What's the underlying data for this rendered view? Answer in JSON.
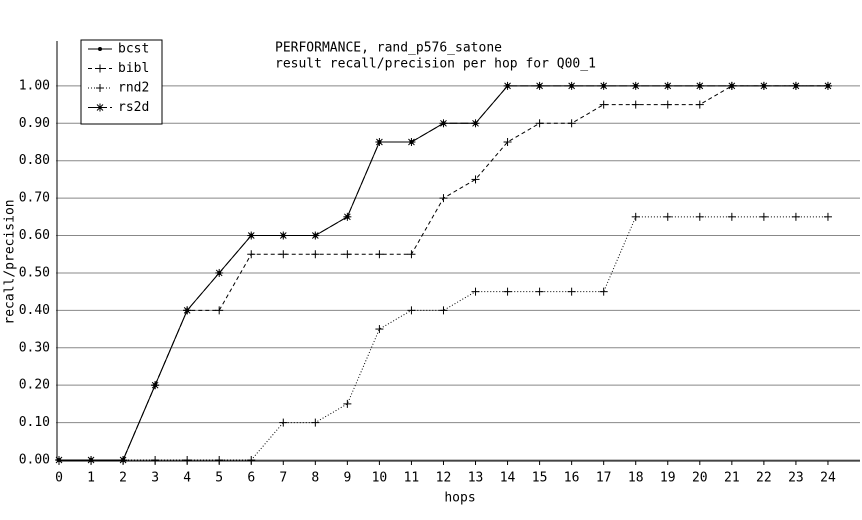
{
  "chart_data": {
    "type": "line",
    "title": "PERFORMANCE, rand_p576_satone",
    "subtitle": "result recall/precision per hop for Q00_1",
    "x_label": "hops",
    "y_label": "recall/precision",
    "x": [
      0,
      1,
      2,
      3,
      4,
      5,
      6,
      7,
      8,
      9,
      10,
      11,
      12,
      13,
      14,
      15,
      16,
      17,
      18,
      19,
      20,
      21,
      22,
      23,
      24
    ],
    "series": [
      {
        "name": "bcst",
        "color": "#000000",
        "dash": "none",
        "marker": "dot",
        "values": [
          0,
          0,
          0,
          0.2,
          0.4,
          0.5,
          0.6,
          0.6,
          0.6,
          0.65,
          0.85,
          0.85,
          0.9,
          0.9,
          1,
          1,
          1,
          1,
          1,
          1,
          1,
          1,
          1,
          1,
          1
        ]
      },
      {
        "name": "bibl",
        "color": "#000000",
        "dash": "4 3",
        "marker": "plus",
        "values": [
          0,
          0,
          0,
          0.2,
          0.4,
          0.4,
          0.55,
          0.55,
          0.55,
          0.55,
          0.55,
          0.55,
          0.7,
          0.75,
          0.85,
          0.9,
          0.9,
          0.95,
          0.95,
          0.95,
          0.95,
          1,
          1,
          1,
          1
        ]
      },
      {
        "name": "rnd2",
        "color": "#000000",
        "dash": "1 2",
        "marker": "plus",
        "values": [
          0,
          0,
          0,
          0,
          0,
          0,
          0,
          0.1,
          0.1,
          0.15,
          0.35,
          0.4,
          0.4,
          0.45,
          0.45,
          0.45,
          0.45,
          0.45,
          0.65,
          0.65,
          0.65,
          0.65,
          0.65,
          0.65,
          0.65
        ]
      },
      {
        "name": "rs2d",
        "color": "#000000",
        "dash": "8 3",
        "marker": "star",
        "values": [
          0,
          0,
          0,
          0.2,
          0.4,
          0.5,
          0.6,
          0.6,
          0.6,
          0.65,
          0.85,
          0.85,
          0.9,
          0.9,
          1,
          1,
          1,
          1,
          1,
          1,
          1,
          1,
          1,
          1,
          1
        ]
      }
    ],
    "xlim": [
      0,
      25
    ],
    "ylim": [
      0,
      1.12
    ],
    "xticks": [
      0,
      1,
      2,
      3,
      4,
      5,
      6,
      7,
      8,
      9,
      10,
      11,
      12,
      13,
      14,
      15,
      16,
      17,
      18,
      19,
      20,
      21,
      22,
      23,
      24
    ],
    "yticks": [
      {
        "value": 0,
        "label": "0.00"
      },
      {
        "value": 0.1,
        "label": "0.10"
      },
      {
        "value": 0.2,
        "label": "0.20"
      },
      {
        "value": 0.3,
        "label": "0.30"
      },
      {
        "value": 0.4,
        "label": "0.40"
      },
      {
        "value": 0.5,
        "label": "0.50"
      },
      {
        "value": 0.6,
        "label": "0.60"
      },
      {
        "value": 0.7,
        "label": "0.70"
      },
      {
        "value": 0.8,
        "label": "0.80"
      },
      {
        "value": 0.9,
        "label": "0.90"
      },
      {
        "value": 1,
        "label": "1.00"
      }
    ],
    "grid": true,
    "legend": "top-left"
  }
}
